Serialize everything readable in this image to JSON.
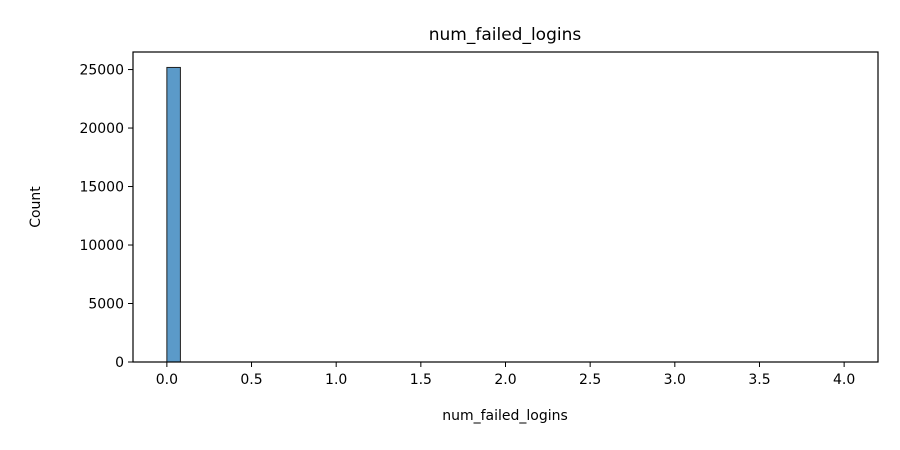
{
  "chart_data": {
    "type": "histogram",
    "title": "num_failed_logins",
    "xlabel": "num_failed_logins",
    "ylabel": "Count",
    "xlim": [
      -0.2,
      4.2
    ],
    "ylim": [
      0,
      26500
    ],
    "xticks": [
      0.0,
      0.5,
      1.0,
      1.5,
      2.0,
      2.5,
      3.0,
      3.5,
      4.0
    ],
    "xtick_labels": [
      "0.0",
      "0.5",
      "1.0",
      "1.5",
      "2.0",
      "2.5",
      "3.0",
      "3.5",
      "4.0"
    ],
    "yticks": [
      0,
      5000,
      10000,
      15000,
      20000,
      25000
    ],
    "ytick_labels": [
      "0",
      "5000",
      "10000",
      "15000",
      "20000",
      "25000"
    ],
    "bins": [
      {
        "x0": 0.0,
        "x1": 0.08,
        "count": 25180
      },
      {
        "x0": 0.08,
        "x1": 1.0,
        "count": 0
      },
      {
        "x0": 1.0,
        "x1": 4.0,
        "count": 0
      }
    ],
    "bar_color": "#5b9ac9",
    "bar_edge_color": "#1f1f1f"
  }
}
